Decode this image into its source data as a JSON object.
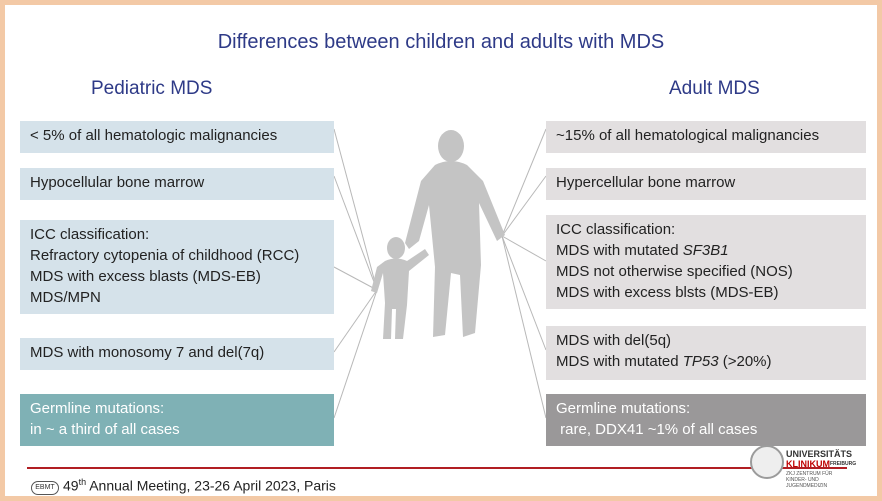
{
  "title": "Differences between  children and adults with MDS",
  "pediatric": {
    "heading": "Pediatric MDS",
    "boxes": [
      [
        "< 5% of all hematologic malignancies"
      ],
      [
        "Hypocellular bone marrow"
      ],
      [
        "ICC classification:",
        "Refractory cytopenia of childhood (RCC)",
        "MDS with excess blasts (MDS-EB)",
        "MDS/MPN"
      ],
      [
        "MDS with monosomy 7 and del(7q)"
      ],
      [
        "Germline mutations:",
        "in ~ a third of all cases"
      ]
    ]
  },
  "adult": {
    "heading": "Adult MDS",
    "b1": "~15% of all hematological malignancies",
    "b2": "Hypercellular bone marrow",
    "b3_l1": "ICC classification:",
    "b3_l2_prefix": "MDS with mutated ",
    "b3_l2_gene": "SF3B1",
    "b3_l3": "MDS not otherwise specified (NOS)",
    "b3_l4": "MDS with excess blsts (MDS-EB)",
    "b4_l1": "MDS with del(5q)",
    "b4_l2_prefix": "MDS with mutated ",
    "b4_l2_gene": "TP53",
    "b4_l2_suffix": " (>20%)",
    "b5_l1": "Germline mutations:",
    "b5_l2": " rare, DDX41 ~1% of all cases"
  },
  "footer": {
    "logo": "EBMT",
    "ordinal": "49",
    "ordinal_suffix": "th",
    "text": " Annual Meeting, 23-26 April 2023, Paris"
  },
  "university_logo": {
    "line1": "UNIVERSITÄTS",
    "line2": "KLINIKUM",
    "line2_small": "FREIBURG",
    "sub": "ZKJ ZENTRUM FÜR KINDER- UND JUGENDMEDIZIN"
  },
  "colors": {
    "title": "#2e3a87",
    "pediatric_box": "#d5e2ea",
    "adult_box": "#e2dfe0",
    "pediatric_germline": "#7fb1b5",
    "adult_germline": "#9a9899",
    "footer_rule": "#b11e23",
    "frame": "#f3c9a6"
  },
  "icons": [
    "adult-silhouette-icon",
    "child-silhouette-icon",
    "university-seal-icon"
  ]
}
